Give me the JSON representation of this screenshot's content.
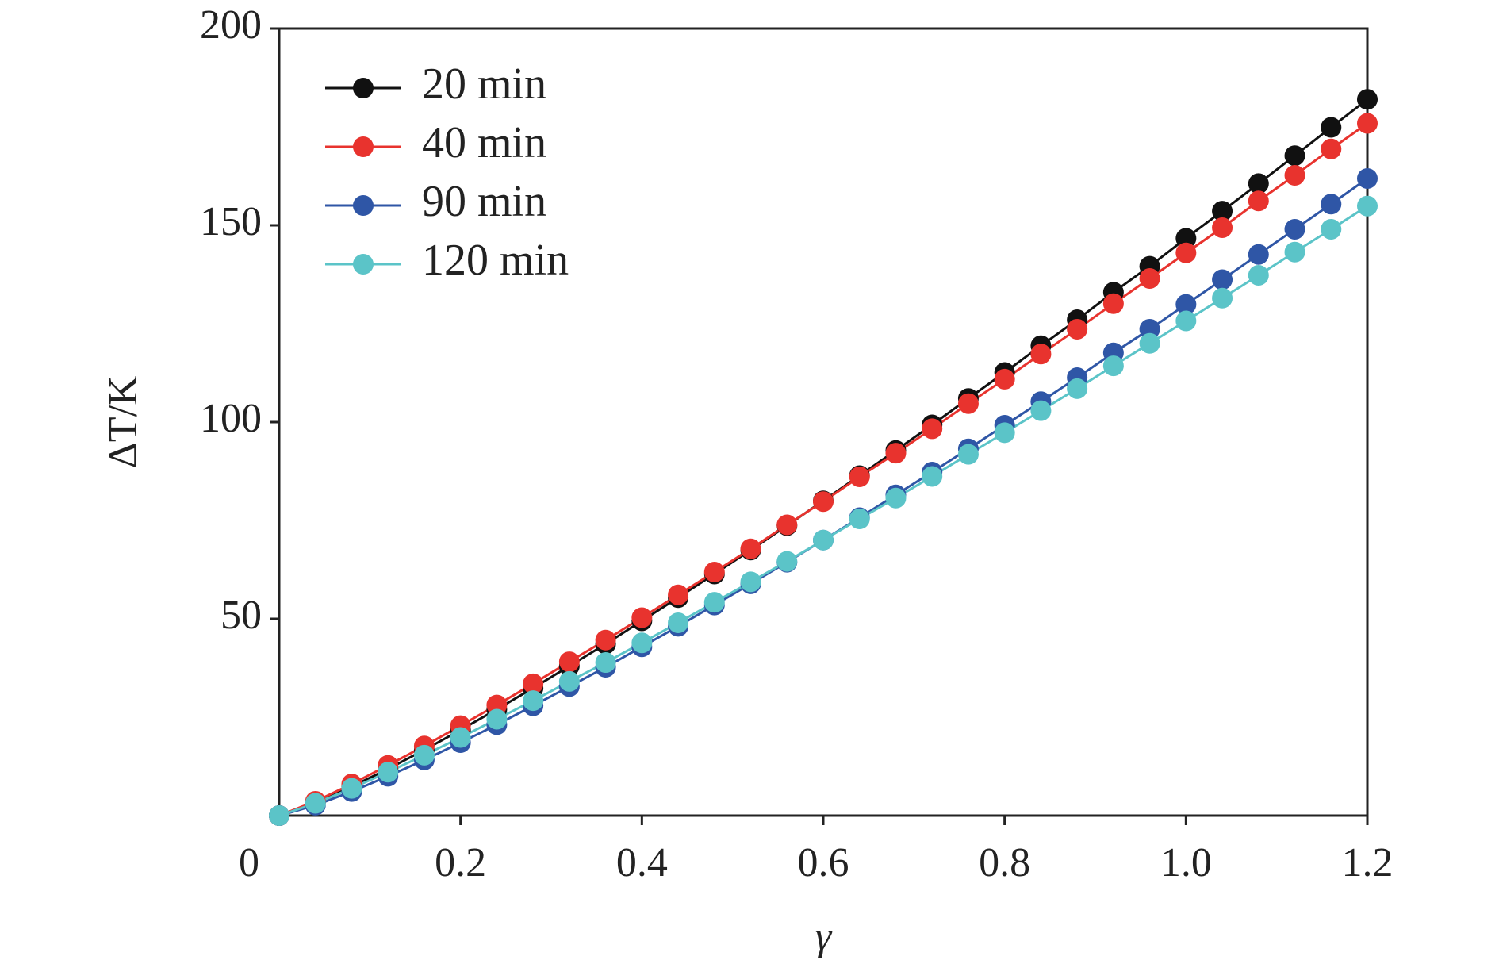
{
  "chart_data": {
    "type": "line",
    "x_label": "γ",
    "y_label": "ΔT/K",
    "x": [
      0,
      0.04,
      0.08,
      0.12,
      0.16,
      0.2,
      0.24,
      0.28,
      0.32,
      0.36,
      0.4,
      0.44,
      0.48,
      0.52,
      0.56,
      0.6,
      0.64,
      0.68,
      0.72,
      0.76,
      0.8,
      0.84,
      0.88,
      0.92,
      0.96,
      1.0,
      1.04,
      1.08,
      1.12,
      1.16,
      1.2
    ],
    "series": [
      {
        "name": "20 min",
        "color": "#111111",
        "values": [
          0,
          3.22,
          7.33,
          11.87,
          16.68,
          21.76,
          27.0,
          32.4,
          38.0,
          43.6,
          49.5,
          55.4,
          61.4,
          67.5,
          73.7,
          80.0,
          86.4,
          92.8,
          99.3,
          106.0,
          112.6,
          119.4,
          126.0,
          133.0,
          139.6,
          146.7,
          153.6,
          160.6,
          167.7,
          174.9,
          182.0
        ]
      },
      {
        "name": "40 min",
        "color": "#e8332e",
        "values": [
          0,
          3.64,
          8.03,
          12.76,
          17.69,
          22.85,
          28.1,
          33.5,
          39.1,
          44.6,
          50.3,
          56.1,
          61.9,
          67.8,
          73.9,
          79.8,
          86.1,
          92.1,
          98.3,
          104.7,
          110.9,
          117.3,
          123.6,
          130.1,
          136.5,
          143.0,
          149.4,
          156.2,
          162.7,
          169.4,
          175.9
        ]
      },
      {
        "name": "90 min",
        "color": "#2f56a6",
        "values": [
          0,
          2.64,
          6.12,
          10.0,
          14.14,
          18.54,
          23.1,
          27.9,
          32.8,
          37.7,
          42.9,
          48.1,
          53.5,
          58.9,
          64.4,
          70.0,
          75.7,
          81.5,
          87.3,
          93.2,
          99.2,
          105.2,
          111.3,
          117.6,
          123.6,
          129.9,
          136.2,
          142.6,
          149.0,
          155.4,
          161.9
        ]
      },
      {
        "name": "120 min",
        "color": "#5bc4c8",
        "values": [
          0,
          3.13,
          6.94,
          11.05,
          15.36,
          19.85,
          24.5,
          29.2,
          34.1,
          38.9,
          43.9,
          49.0,
          54.2,
          59.4,
          64.6,
          70.0,
          75.4,
          80.7,
          86.2,
          91.8,
          97.3,
          102.9,
          108.5,
          114.3,
          120.0,
          125.7,
          131.5,
          137.3,
          143.2,
          149.0,
          154.9
        ]
      }
    ],
    "xlim": [
      0,
      1.2
    ],
    "xticks": [
      0,
      0.2,
      0.4,
      0.6,
      0.8,
      {
        "value": 1,
        "label": "1.0"
      },
      1.2
    ],
    "ylim": [
      0,
      200
    ],
    "yticks": [
      50,
      100,
      150,
      200
    ],
    "legend": "upper left",
    "markers": true
  }
}
